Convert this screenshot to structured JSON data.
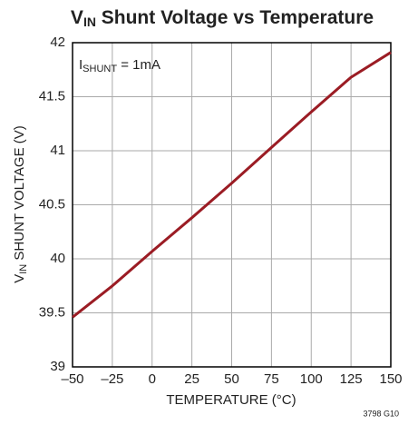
{
  "chart_data": {
    "type": "line",
    "title": [
      "V",
      "IN",
      " Shunt Voltage vs Temperature"
    ],
    "xlabel": "TEMPERATURE (°C)",
    "ylabel": [
      "V",
      "IN",
      " SHUNT VOLTAGE (V)"
    ],
    "annotation": [
      "I",
      "SHUNT",
      " = 1mA"
    ],
    "footnote": "3798 G10",
    "x": [
      -50,
      -25,
      0,
      25,
      50,
      75,
      100,
      125,
      150
    ],
    "values": [
      39.46,
      39.75,
      40.07,
      40.38,
      40.7,
      41.03,
      41.36,
      41.68,
      41.91
    ],
    "color": "#9b1c24",
    "xlim": [
      -50,
      150
    ],
    "xticks": [
      {
        "value": -50,
        "label": "–50"
      },
      {
        "value": -25,
        "label": "–25"
      },
      0,
      25,
      50,
      75,
      100,
      125,
      150
    ],
    "ylim": [
      39,
      42
    ],
    "yticks": [
      39,
      39.5,
      40,
      40.5,
      41,
      41.5,
      42
    ],
    "grid": true
  }
}
